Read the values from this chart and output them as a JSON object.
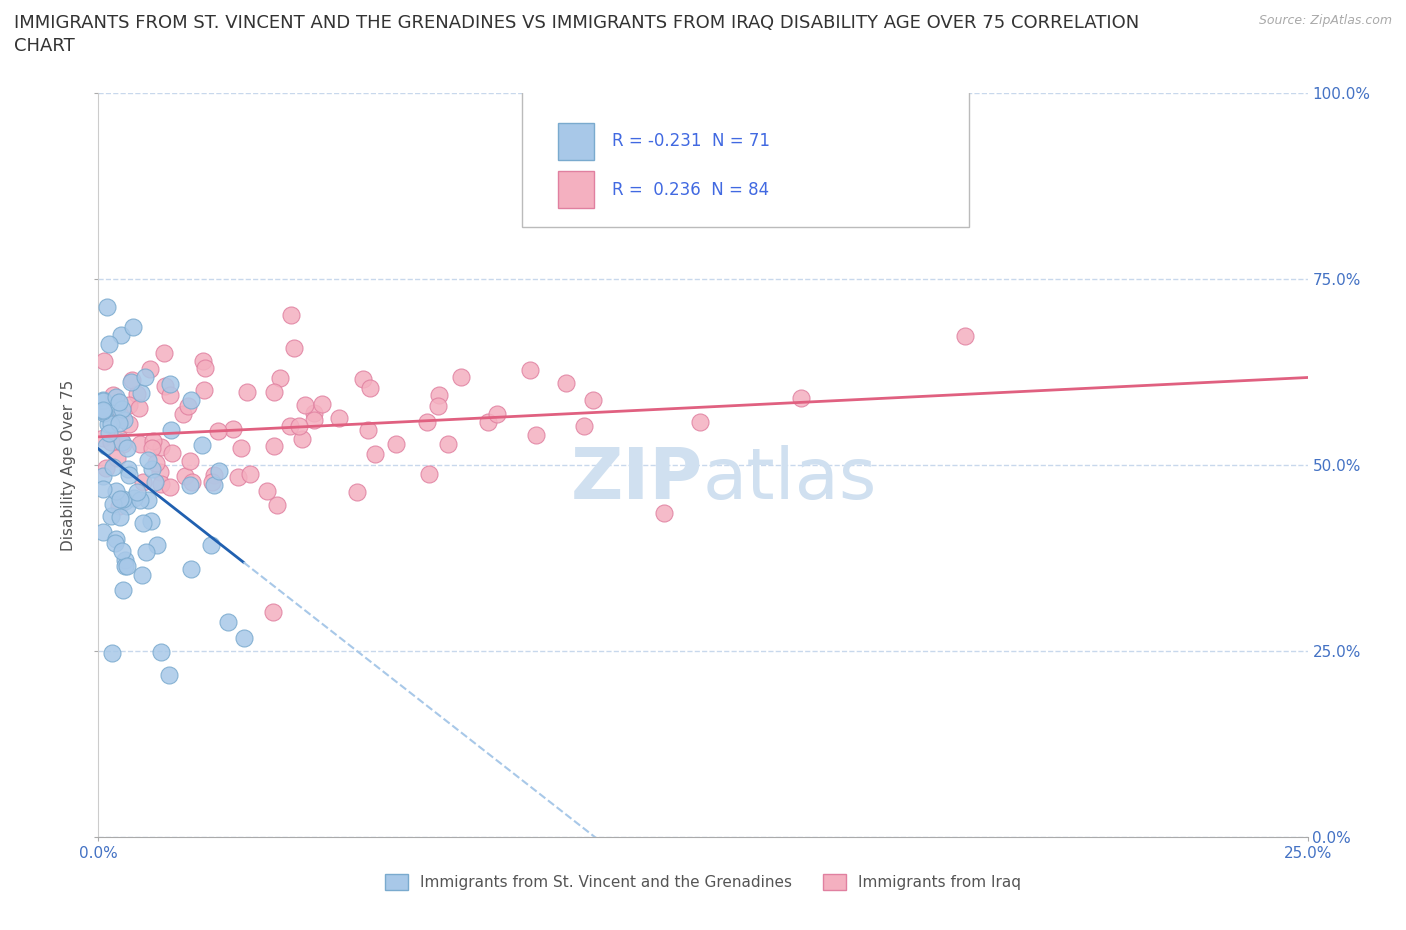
{
  "title_line1": "IMMIGRANTS FROM ST. VINCENT AND THE GRENADINES VS IMMIGRANTS FROM IRAQ DISABILITY AGE OVER 75 CORRELATION",
  "title_line2": "CHART",
  "source": "Source: ZipAtlas.com",
  "ylabel": "Disability Age Over 75",
  "xlim": [
    0.0,
    0.25
  ],
  "ylim": [
    0.0,
    1.0
  ],
  "xtick_left": 0.0,
  "xtick_right": 0.25,
  "xtick_left_label": "0.0%",
  "xtick_right_label": "25.0%",
  "yticks": [
    0.0,
    0.25,
    0.5,
    0.75,
    1.0
  ],
  "yticklabels": [
    "0.0%",
    "25.0%",
    "50.0%",
    "75.0%",
    "100.0%"
  ],
  "series1_color": "#a8c8e8",
  "series1_edge": "#7aaace",
  "series1_label": "Immigrants from St. Vincent and the Grenadines",
  "series1_R": -0.231,
  "series1_N": 71,
  "series1_line_color": "#2060b0",
  "series1_line_dash_color": "#a8c8e8",
  "series2_color": "#f4b0c0",
  "series2_edge": "#e080a0",
  "series2_label": "Immigrants from Iraq",
  "series2_R": 0.236,
  "series2_N": 84,
  "series2_line_color": "#e06080",
  "background_color": "#ffffff",
  "grid_color": "#c8d8ec",
  "title_fontsize": 13,
  "axis_fontsize": 11,
  "tick_fontsize": 11,
  "legend_R_color": "#4169E1",
  "watermark_color": "#d0e0f0",
  "right_ytick_color": "#4472C4"
}
